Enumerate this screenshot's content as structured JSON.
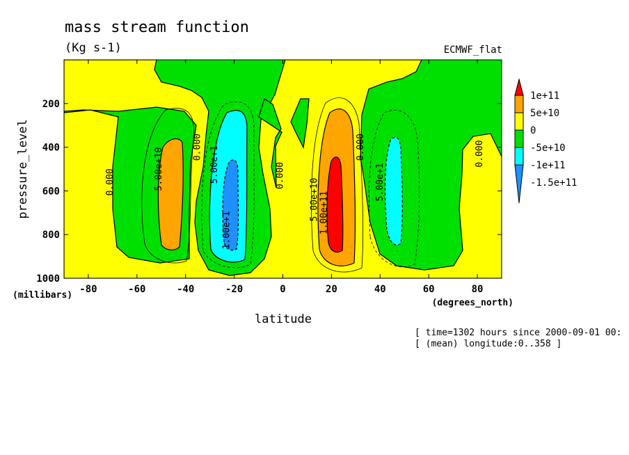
{
  "chart_data": {
    "type": "heatmap",
    "title": "mass stream function",
    "subtitle": "(Kg s-1)",
    "dataset": "ECMWF_flat",
    "xlabel": "latitude",
    "x_units": "(degrees_north)",
    "ylabel": "pressure_level",
    "y_units": "(millibars)",
    "xlim": [
      -90,
      90
    ],
    "ylim": [
      1000,
      0
    ],
    "x_ticks": [
      -80,
      -60,
      -40,
      -20,
      0,
      20,
      40,
      60,
      80
    ],
    "y_ticks": [
      1000,
      800,
      600,
      400,
      200
    ],
    "legend": {
      "position": "right",
      "labels": [
        "1e+11",
        "5e+10",
        "0",
        "-5e+10",
        "-1e+11",
        "-1.5e+11"
      ],
      "colors": [
        "#ff0000",
        "#ffa500",
        "#ffff00",
        "#00e000",
        "#00ffff",
        "#1e90ff"
      ]
    },
    "cells": [
      {
        "name": "southern-hemisphere-positive-cell",
        "lat": -48,
        "p": 600,
        "peak": "5e+10 to 1e+11"
      },
      {
        "name": "southern-tropical-negative-cell",
        "lat": -22,
        "p": 650,
        "peak": "-1e+11 to -1.5e+11"
      },
      {
        "name": "northern-tropical-positive-cell",
        "lat": 20,
        "p": 650,
        "peak": "above 1e+11"
      },
      {
        "name": "northern-midlatitude-negative-cell",
        "lat": 44,
        "p": 550,
        "peak": "-5e+10 to -1e+11"
      }
    ],
    "contour_labels": [
      {
        "text": "0.000",
        "lat": -70,
        "p": 560
      },
      {
        "text": "5.00e+10",
        "lat": -50,
        "p": 500
      },
      {
        "text": "0.000",
        "lat": -34,
        "p": 400
      },
      {
        "text": "5.00e+1",
        "lat": -27,
        "p": 480
      },
      {
        "text": "1.00e+1",
        "lat": -22,
        "p": 780
      },
      {
        "text": "0.000",
        "lat": 0,
        "p": 530
      },
      {
        "text": "5.00e+10",
        "lat": 14,
        "p": 640
      },
      {
        "text": "1.00e+11",
        "lat": 18,
        "p": 700
      },
      {
        "text": "0.000",
        "lat": 33,
        "p": 400
      },
      {
        "text": "5.00e+1",
        "lat": 41,
        "p": 560
      },
      {
        "text": "0.000",
        "lat": 82,
        "p": 430
      }
    ],
    "footnote": [
      "[ time=1302 hours since 2000-09-01 00:",
      "[ (mean) longitude:0..358 ]"
    ]
  }
}
